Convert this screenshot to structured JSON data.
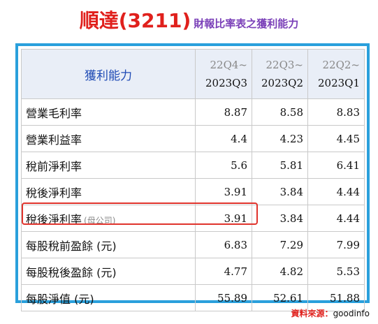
{
  "header": {
    "company": "順達(3211)",
    "subtitle": "財報比率表之獲利能力"
  },
  "table": {
    "label_header": "獲利能力",
    "periods": [
      {
        "range": "22Q4~",
        "quarter": "2023Q3"
      },
      {
        "range": "22Q3~",
        "quarter": "2023Q2"
      },
      {
        "range": "22Q2~",
        "quarter": "2023Q1"
      }
    ],
    "rows": [
      {
        "label": "營業毛利率",
        "note": "",
        "values": [
          "8.87",
          "8.58",
          "8.83"
        ]
      },
      {
        "label": "營業利益率",
        "note": "",
        "values": [
          "4.4",
          "4.23",
          "4.45"
        ]
      },
      {
        "label": "稅前淨利率",
        "note": "",
        "values": [
          "5.6",
          "5.81",
          "6.41"
        ]
      },
      {
        "label": "稅後淨利率",
        "note": "",
        "values": [
          "3.91",
          "3.84",
          "4.44"
        ]
      },
      {
        "label": "稅後淨利率",
        "note": "(母公司)",
        "values": [
          "3.91",
          "3.84",
          "4.44"
        ]
      },
      {
        "label": "每股稅前盈餘 (元)",
        "note": "",
        "values": [
          "6.83",
          "7.29",
          "7.99"
        ]
      },
      {
        "label": "每股稅後盈餘 (元)",
        "note": "",
        "values": [
          "4.77",
          "4.82",
          "5.53"
        ]
      },
      {
        "label": "每股淨值 (元)",
        "note": "",
        "values": [
          "55.89",
          "52.61",
          "51.88"
        ]
      }
    ]
  },
  "source": {
    "label": "資料來源：",
    "name": "goodinfo"
  },
  "colors": {
    "title_red": "#e0201c",
    "subtitle_purple": "#7a3fb8",
    "frame_blue": "#2aa0dc",
    "header_bg": "#e9eef7",
    "highlight_red": "#e0332c"
  }
}
